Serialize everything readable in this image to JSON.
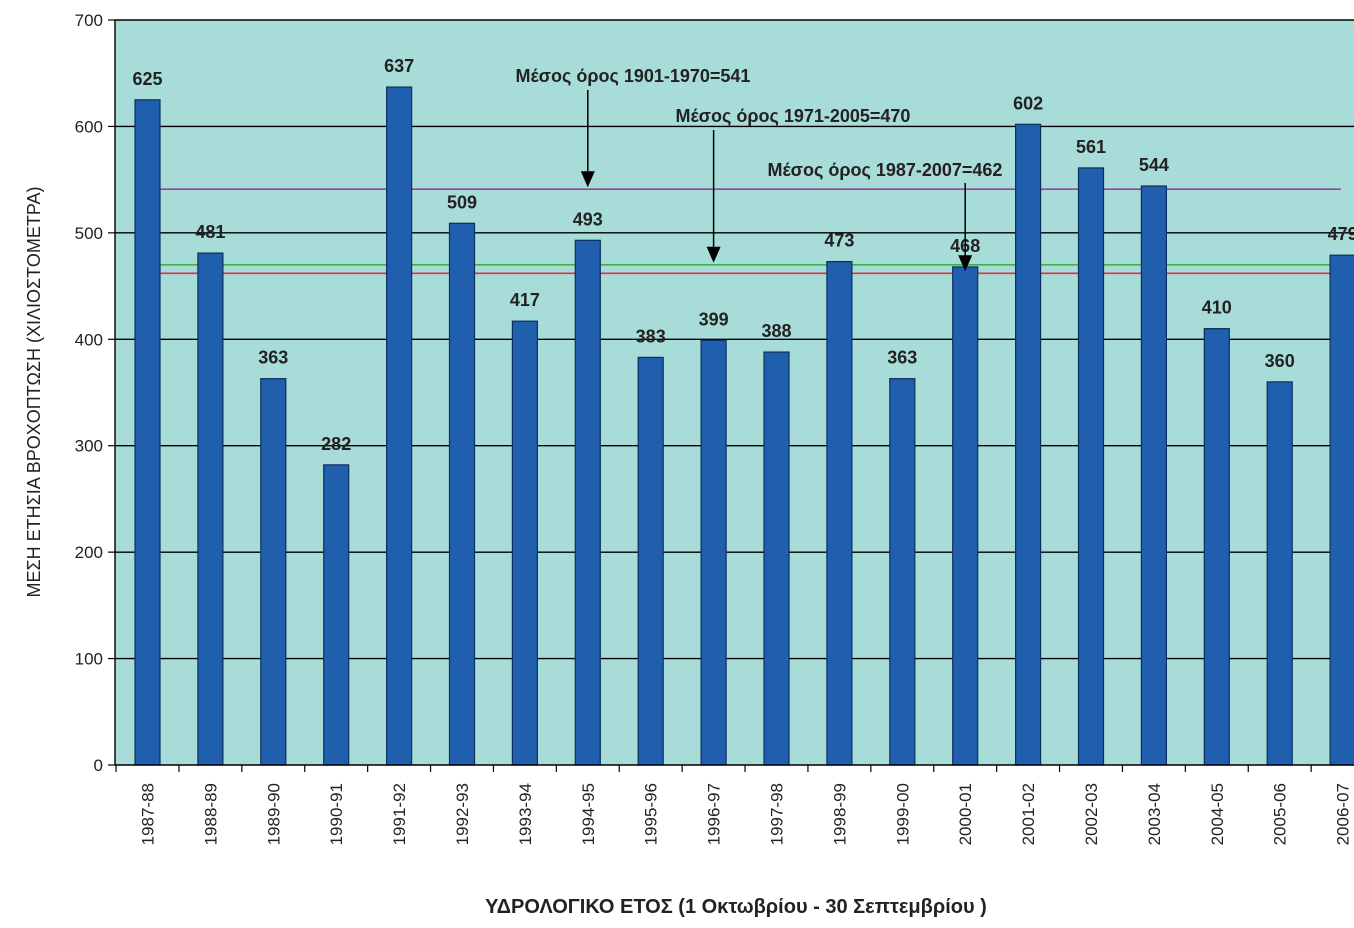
{
  "chart_data": {
    "type": "bar",
    "categories": [
      "1987-88",
      "1988-89",
      "1989-90",
      "1990-91",
      "1991-92",
      "1992-93",
      "1993-94",
      "1994-95",
      "1995-96",
      "1996-97",
      "1997-98",
      "1998-99",
      "1999-00",
      "2000-01",
      "2001-02",
      "2002-03",
      "2003-04",
      "2004-05",
      "2005-06",
      "2006-07"
    ],
    "values": [
      625,
      481,
      363,
      282,
      637,
      509,
      417,
      493,
      383,
      399,
      388,
      473,
      363,
      468,
      602,
      561,
      544,
      410,
      360,
      479
    ],
    "ylabel": "ΜΕΣΗ ΕΤΗΣΙΑ ΒΡΟΧΟΠΤΩΣΗ (ΧΙΛΙΟΣΤΟΜΕΤΡΑ)",
    "xlabel": "ΥΔΡΟΛΟΓΙΚΟ  ΕΤΟΣ (1 Οκτωβρίου - 30 Σεπτεμβρίου )",
    "ylim": [
      0,
      700
    ],
    "yticks": [
      0,
      100,
      200,
      300,
      400,
      500,
      600,
      700
    ],
    "grid": true,
    "colors": {
      "bar": "#1f5fad",
      "bar_edge": "#0d2f5e",
      "plot_background": "#a8dcd8",
      "gridline": "#000000"
    },
    "reference_lines": [
      {
        "label": "Μέσος όρος 1901-1970=541",
        "value": 541,
        "color": "#a0409a",
        "arrow_category_index": 7
      },
      {
        "label": "Μέσος όρος 1971-2005=470",
        "value": 470,
        "color": "#3fb24a",
        "arrow_category_index": 9
      },
      {
        "label": "Μέσος όρος 1987-2007=462",
        "value": 462,
        "color": "#e0303a",
        "arrow_category_index": 13
      }
    ]
  }
}
